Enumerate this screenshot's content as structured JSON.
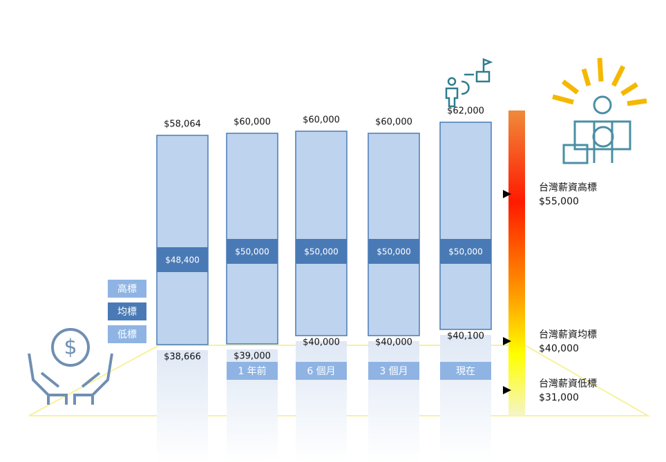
{
  "columns": [
    {
      "high": "$58,064",
      "average": "$48,400",
      "low": "$38,666"
    },
    {
      "high": "$60,000",
      "average": "$50,000",
      "low": "$39,000",
      "label": "1 年前"
    },
    {
      "high": "$60,000",
      "average": "$50,000",
      "low": "$40,000",
      "label": "6 個月"
    },
    {
      "high": "$60,000",
      "average": "$50,000",
      "low": "$40,000",
      "label": "3 個月"
    },
    {
      "high": "$62,000",
      "average": "$50,000",
      "low": "$40,100",
      "label": "現在"
    }
  ],
  "legend": [
    "高標",
    "均標",
    "低標"
  ],
  "benchmarks": [
    {
      "name": "台灣薪資高標",
      "value": "$55,000"
    },
    {
      "name": "台灣薪資均標",
      "value": "$40,000"
    },
    {
      "name": "台灣薪資低標",
      "value": "$31,000"
    }
  ]
}
